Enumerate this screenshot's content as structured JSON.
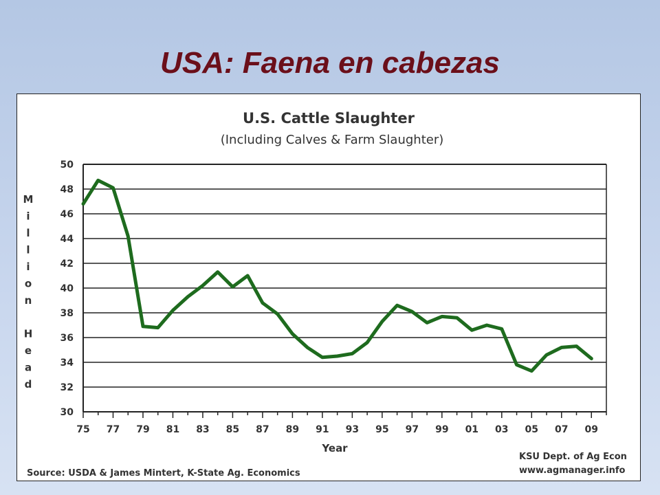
{
  "slide": {
    "title": "USA:  Faena en cabezas"
  },
  "chart_data": {
    "type": "line",
    "title": "U.S. Cattle Slaughter",
    "subtitle": "(Including Calves & Farm Slaughter)",
    "xlabel": "Year",
    "ylabel": "Million Head",
    "ylim": [
      30,
      50
    ],
    "yticks": [
      "30",
      "32",
      "34",
      "36",
      "38",
      "40",
      "42",
      "44",
      "46",
      "48",
      "50"
    ],
    "xlim": [
      1975,
      2010
    ],
    "xticks": [
      "75",
      "77",
      "79",
      "81",
      "83",
      "85",
      "87",
      "89",
      "91",
      "93",
      "95",
      "97",
      "99",
      "01",
      "03",
      "05",
      "07",
      "09"
    ],
    "grid": "horizontal",
    "source": "Source:  USDA & James Mintert, K-State Ag. Economics",
    "credit_line1": "KSU Dept. of Ag Econ",
    "credit_line2": "www.agmanager.info",
    "line_color": "#1e6b1e",
    "series": [
      {
        "x": [
          1975,
          1976,
          1977,
          1978,
          1979,
          1980,
          1981,
          1982,
          1983,
          1984,
          1985,
          1986,
          1987,
          1988,
          1989,
          1990,
          1991,
          1992,
          1993,
          1994,
          1995,
          1996,
          1997,
          1998,
          1999,
          2000,
          2001,
          2002,
          2003,
          2004,
          2005,
          2006,
          2007,
          2008,
          2009
        ],
        "values": [
          46.8,
          48.7,
          48.1,
          44.2,
          36.9,
          36.8,
          38.2,
          39.3,
          40.2,
          41.3,
          40.1,
          41.0,
          38.8,
          37.9,
          36.3,
          35.2,
          34.4,
          34.5,
          34.7,
          35.6,
          37.3,
          38.6,
          38.1,
          37.2,
          37.7,
          37.6,
          36.6,
          37.0,
          36.7,
          33.8,
          33.3,
          34.6,
          35.2,
          35.3,
          34.3
        ]
      }
    ]
  }
}
